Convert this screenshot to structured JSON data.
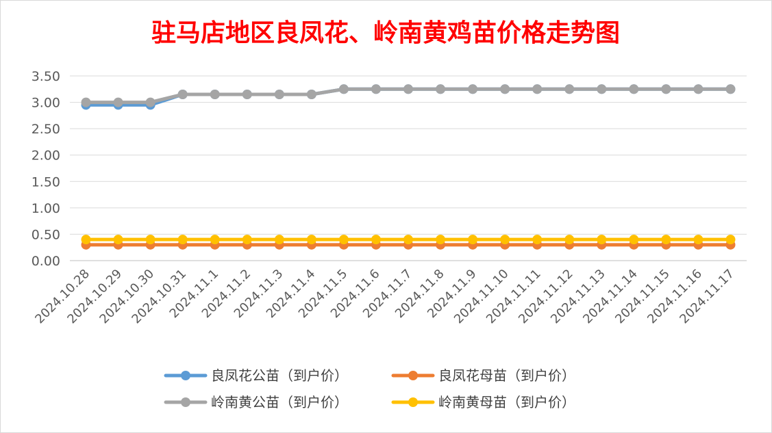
{
  "chart_data": {
    "type": "line",
    "title": "驻马店地区良凤花、岭南黄鸡苗价格走势图",
    "xlabel": "",
    "ylabel": "",
    "ylim": [
      0,
      3.5
    ],
    "yticks": [
      "0.00",
      "0.50",
      "1.00",
      "1.50",
      "2.00",
      "2.50",
      "3.00",
      "3.50"
    ],
    "grid": true,
    "legend_position": "bottom",
    "categories": [
      "2024.10.28",
      "2024.10.29",
      "2024.10.30",
      "2024.10.31",
      "2024.11.1",
      "2024.11.2",
      "2024.11.3",
      "2024.11.4",
      "2024.11.5",
      "2024.11.6",
      "2024.11.7",
      "2024.11.8",
      "2024.11.9",
      "2024.11.10",
      "2024.11.11",
      "2024.11.12",
      "2024.11.13",
      "2024.11.14",
      "2024.11.15",
      "2024.11.16",
      "2024.11.17"
    ],
    "series": [
      {
        "name": "良凤花公苗（到户价）",
        "color": "#5b9bd5",
        "values": [
          2.95,
          2.95,
          2.95,
          3.15,
          3.15,
          3.15,
          3.15,
          3.15,
          3.25,
          3.25,
          3.25,
          3.25,
          3.25,
          3.25,
          3.25,
          3.25,
          3.25,
          3.25,
          3.25,
          3.25,
          3.25
        ]
      },
      {
        "name": "良凤花母苗（到户价）",
        "color": "#ed7d31",
        "values": [
          0.3,
          0.3,
          0.3,
          0.3,
          0.3,
          0.3,
          0.3,
          0.3,
          0.3,
          0.3,
          0.3,
          0.3,
          0.3,
          0.3,
          0.3,
          0.3,
          0.3,
          0.3,
          0.3,
          0.3,
          0.3
        ]
      },
      {
        "name": "岭南黄公苗（到户价）",
        "color": "#a5a5a5",
        "values": [
          3.0,
          3.0,
          3.0,
          3.15,
          3.15,
          3.15,
          3.15,
          3.15,
          3.25,
          3.25,
          3.25,
          3.25,
          3.25,
          3.25,
          3.25,
          3.25,
          3.25,
          3.25,
          3.25,
          3.25,
          3.25
        ]
      },
      {
        "name": "岭南黄母苗（到户价）",
        "color": "#ffc000",
        "values": [
          0.4,
          0.4,
          0.4,
          0.4,
          0.4,
          0.4,
          0.4,
          0.4,
          0.4,
          0.4,
          0.4,
          0.4,
          0.4,
          0.4,
          0.4,
          0.4,
          0.4,
          0.4,
          0.4,
          0.4,
          0.4
        ]
      }
    ]
  }
}
